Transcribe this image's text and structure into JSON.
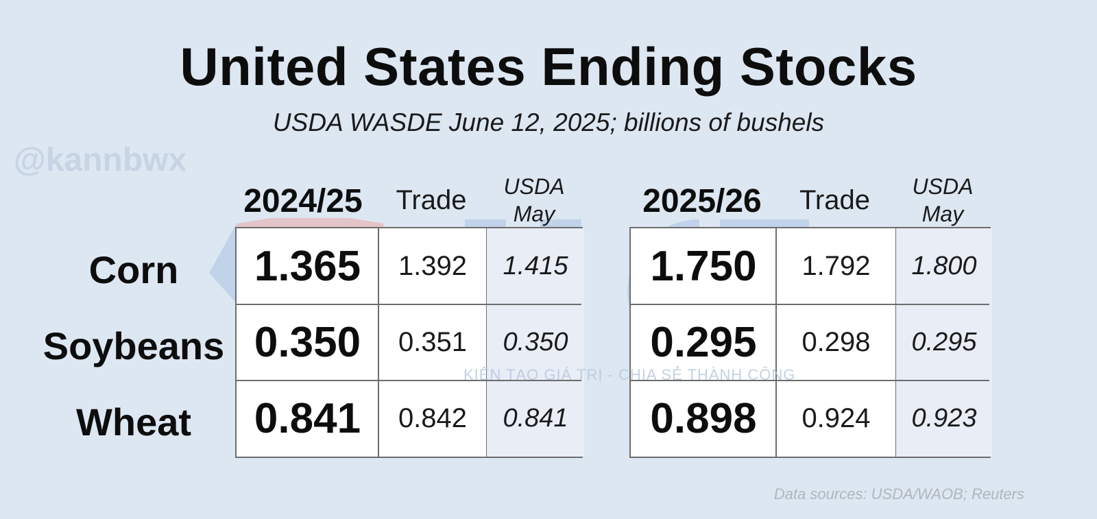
{
  "title": "United States Ending Stocks",
  "subtitle": "USDA WASDE June 12, 2025; billions of bushels",
  "watermark_handle": "@kannbwx",
  "watermark_logo": "HCT",
  "watermark_tagline": "KIẾN TẠO GIÁ TRỊ - CHIA SẺ THÀNH CÔNG",
  "source": "Data sources: USDA/WAOB; Reuters",
  "colors": {
    "background": "#dde7f2",
    "may_column": "#e8edf6",
    "logo_blue": "#aac4e2",
    "logo_red": "#e8a8a8"
  },
  "chart_data": {
    "type": "table",
    "title": "United States Ending Stocks",
    "subtitle": "USDA WASDE June 12, 2025; billions of bushels",
    "rows": [
      "Corn",
      "Soybeans",
      "Wheat"
    ],
    "tables": [
      {
        "year": "2024/25",
        "trade_label": "Trade",
        "may_label": [
          "USDA",
          "May"
        ],
        "values": {
          "estimate": [
            "1.365",
            "0.350",
            "0.841"
          ],
          "trade": [
            "1.392",
            "0.351",
            "0.842"
          ],
          "may": [
            "1.415",
            "0.350",
            "0.841"
          ]
        }
      },
      {
        "year": "2025/26",
        "trade_label": "Trade",
        "may_label": [
          "USDA",
          "May"
        ],
        "values": {
          "estimate": [
            "1.750",
            "0.295",
            "0.898"
          ],
          "trade": [
            "1.792",
            "0.298",
            "0.924"
          ],
          "may": [
            "1.800",
            "0.295",
            "0.923"
          ]
        }
      }
    ]
  }
}
